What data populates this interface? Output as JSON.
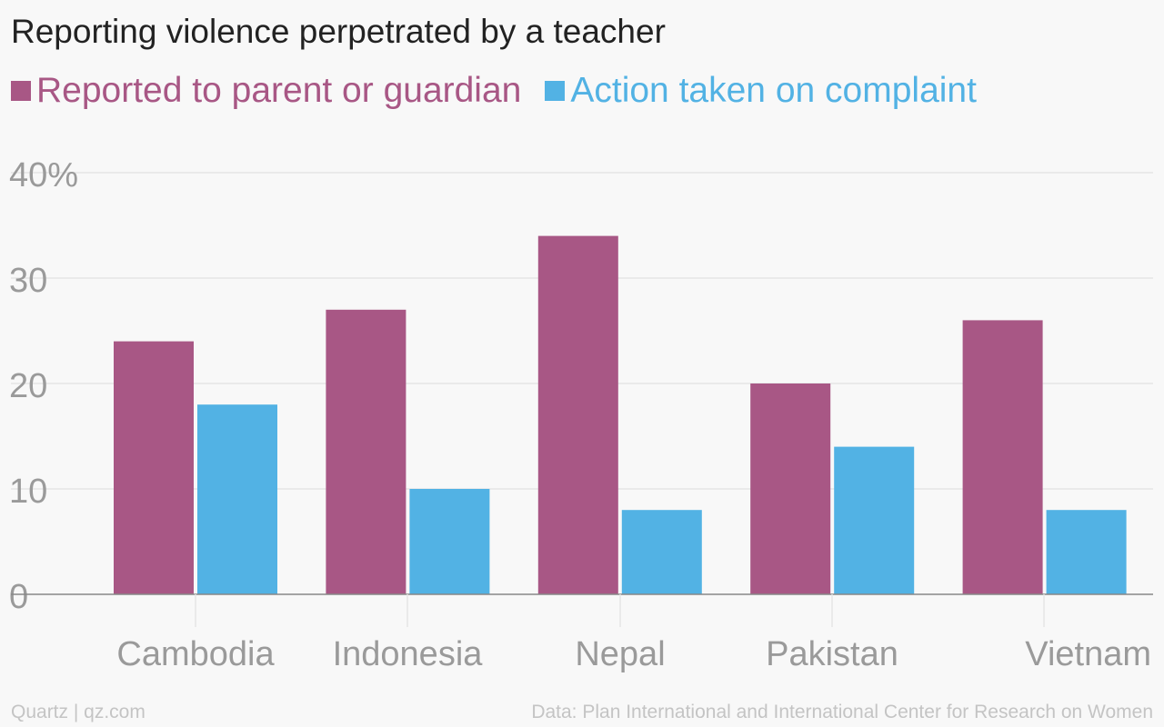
{
  "colors": {
    "series1": "#a85785",
    "series2": "#52b2e4",
    "tick": "#9a9a9a",
    "grid": "#e6e6e6",
    "baseline": "#888888",
    "footer": "#c4c4c4"
  },
  "chart_data": {
    "type": "bar",
    "title": "Reporting violence perpetrated by a teacher",
    "categories": [
      "Cambodia",
      "Indonesia",
      "Nepal",
      "Pakistan",
      "Vietnam"
    ],
    "series": [
      {
        "name": "Reported to parent or guardian",
        "values": [
          24,
          27,
          34,
          20,
          26
        ]
      },
      {
        "name": "Action taken on complaint",
        "values": [
          18,
          10,
          8,
          14,
          8
        ]
      }
    ],
    "y_ticks": [
      "0",
      "10",
      "20",
      "30",
      "40%"
    ],
    "y_tick_values": [
      0,
      10,
      20,
      30,
      40
    ],
    "ylim": [
      0,
      40
    ],
    "grid": true,
    "legend": "top-left"
  },
  "footer": {
    "source_left": "Quartz | qz.com",
    "source_right": "Data: Plan International and International Center for Research on Women"
  }
}
